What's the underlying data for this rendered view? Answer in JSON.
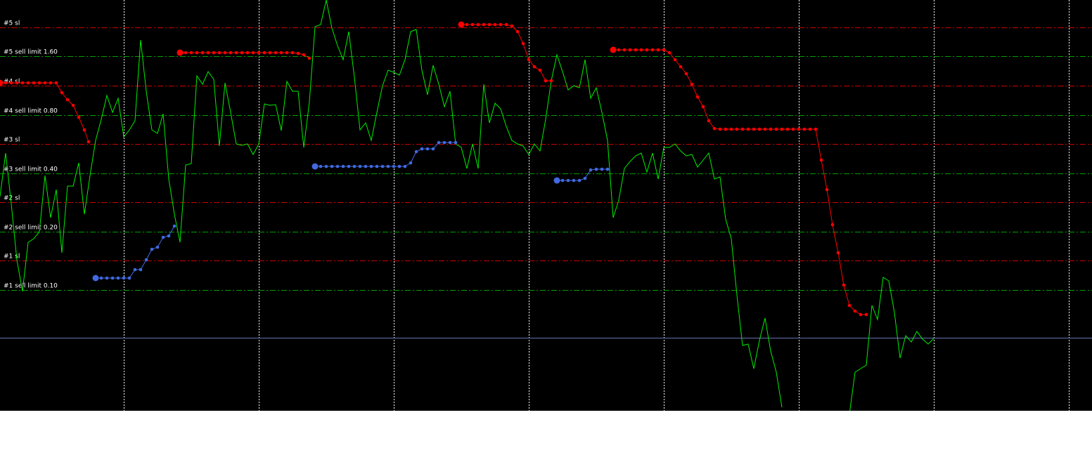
{
  "chart_data": {
    "type": "line",
    "xlim": [
      0,
      194.125
    ],
    "ylim": [
      0,
      585
    ],
    "xticks": [
      22,
      46,
      70,
      94,
      118,
      142,
      166,
      190
    ],
    "grid": true,
    "levels": [
      {
        "label": "#5 sl",
        "value": 546,
        "color": "#cc0000"
      },
      {
        "label": "#5 sell limit 1.60",
        "value": 505,
        "color": "#00a000"
      },
      {
        "label": "#4 sl",
        "value": 463,
        "color": "#cc0000"
      },
      {
        "label": "#4 sell limit 0.80",
        "value": 421,
        "color": "#00a000"
      },
      {
        "label": "#3 sl",
        "value": 380,
        "color": "#cc0000"
      },
      {
        "label": "#3 sell limit 0.40",
        "value": 338,
        "color": "#00a000"
      },
      {
        "label": "#2 sl",
        "value": 297,
        "color": "#cc0000"
      },
      {
        "label": "#2 sell limit 0.20",
        "value": 255,
        "color": "#00a000"
      },
      {
        "label": "#1 sl",
        "value": 214,
        "color": "#cc0000"
      },
      {
        "label": "#1 sell limit 0.10",
        "value": 172,
        "color": "#00a000"
      }
    ],
    "price_line": {
      "value": 104,
      "color": "#6672b0"
    },
    "series": [
      {
        "color": "#00ee00",
        "marker": "none",
        "x": [
          0,
          1,
          2,
          3,
          4,
          5,
          6,
          7,
          8,
          9,
          10,
          11,
          12,
          13,
          14,
          15,
          16,
          17,
          18,
          19,
          20,
          21,
          22,
          23,
          24,
          25,
          26,
          27,
          28,
          29,
          30,
          31,
          32,
          33,
          34,
          35,
          36,
          37,
          38,
          39,
          40,
          41,
          42,
          43,
          44,
          45,
          46,
          47,
          48,
          49,
          50,
          51,
          52,
          53,
          54,
          55,
          56,
          57,
          58,
          59,
          60,
          61,
          62,
          63,
          64,
          65,
          66,
          67,
          68,
          69,
          70,
          71,
          72,
          73,
          74,
          75,
          76,
          77,
          78,
          79,
          80,
          81,
          82,
          83,
          84,
          85,
          86,
          87,
          88,
          89,
          90,
          91,
          92,
          93,
          94,
          95,
          96,
          97,
          98,
          99,
          100,
          101,
          102,
          103,
          104,
          105,
          106,
          107,
          108,
          109,
          110,
          111,
          112,
          113,
          114,
          115,
          116,
          117,
          118,
          119,
          120,
          121,
          122,
          123,
          124,
          125,
          126,
          127,
          128,
          129,
          130,
          131,
          132,
          133,
          134,
          135,
          136,
          137,
          138,
          139,
          140,
          141,
          142,
          143,
          144,
          145,
          146,
          147,
          148,
          149,
          150,
          151,
          152,
          153,
          154,
          155,
          156,
          157,
          158,
          159,
          160,
          161,
          162,
          163,
          164,
          165,
          166
        ],
        "values": [
          305,
          367,
          295,
          215,
          170,
          240,
          245,
          255,
          335,
          275,
          315,
          225,
          320,
          320,
          353,
          280,
          335,
          385,
          415,
          449,
          425,
          445,
          390,
          400,
          413,
          528,
          455,
          400,
          395,
          423,
          330,
          280,
          240,
          350,
          352,
          477,
          465,
          483,
          472,
          377,
          467,
          425,
          380,
          378,
          380,
          365,
          380,
          437,
          435,
          436,
          399,
          469,
          455,
          455,
          375,
          440,
          547,
          550,
          585,
          545,
          520,
          500,
          540,
          475,
          400,
          410,
          385,
          425,
          463,
          485,
          482,
          478,
          500,
          540,
          543,
          485,
          450,
          492,
          465,
          433,
          455,
          380,
          375,
          345,
          380,
          345,
          465,
          410,
          438,
          430,
          405,
          385,
          380,
          377,
          365,
          380,
          370,
          415,
          470,
          507,
          483,
          457,
          463,
          460,
          500,
          445,
          460,
          425,
          385,
          275,
          300,
          345,
          355,
          363,
          367,
          340,
          367,
          330,
          375,
          375,
          380,
          370,
          363,
          365,
          347,
          357,
          367,
          330,
          333,
          273,
          245,
          165,
          93,
          95,
          60,
          100,
          132,
          85,
          55,
          5,
          null,
          null,
          null,
          null,
          null,
          null,
          null,
          null,
          null,
          null,
          null,
          -5,
          55,
          60,
          65,
          150,
          130,
          190,
          185,
          140,
          75,
          107,
          98,
          113,
          102,
          95,
          103
        ]
      },
      {
        "color": "#ff0000",
        "marker": "dots",
        "x": [
          0,
          1,
          2,
          3,
          4,
          5,
          6,
          7,
          8,
          9,
          10,
          11,
          12,
          13,
          14,
          15,
          15.75
        ],
        "values": [
          467,
          467,
          467,
          467,
          467,
          467,
          467,
          467,
          467,
          467,
          467,
          453,
          443,
          435,
          418,
          400,
          383
        ]
      },
      {
        "color": "#ff0000",
        "marker": "dots",
        "x": [
          32,
          33,
          34,
          35,
          36,
          37,
          38,
          39,
          40,
          41,
          42,
          43,
          44,
          45,
          46,
          47,
          48,
          49,
          50,
          51,
          52,
          53,
          54,
          55
        ],
        "values": [
          510,
          510,
          510,
          510,
          510,
          510,
          510,
          510,
          510,
          510,
          510,
          510,
          510,
          510,
          510,
          510,
          510,
          510,
          510,
          510,
          510,
          509,
          507,
          502
        ]
      },
      {
        "color": "#ff0000",
        "marker": "dots",
        "x": [
          82,
          83,
          84,
          85,
          86,
          87,
          88,
          89,
          90,
          91,
          92,
          93,
          94,
          95,
          96,
          97,
          98
        ],
        "values": [
          550,
          550,
          550,
          550,
          550,
          550,
          550,
          550,
          550,
          548,
          540,
          523,
          500,
          490,
          485,
          470,
          470
        ]
      },
      {
        "color": "#ff0000",
        "marker": "dots",
        "x": [
          109,
          110,
          111,
          112,
          113,
          114,
          115,
          116,
          117,
          118,
          119,
          120,
          121,
          122,
          123,
          124,
          125,
          126,
          127,
          128,
          129,
          130,
          131,
          132,
          133,
          134,
          135,
          136,
          137,
          138,
          139,
          140,
          141,
          142,
          143,
          144,
          145,
          146,
          147,
          148,
          149,
          150,
          151,
          152,
          153,
          154
        ],
        "values": [
          514,
          514,
          514,
          514,
          514,
          514,
          514,
          514,
          514,
          514,
          510,
          500,
          490,
          480,
          465,
          447,
          433,
          413,
          402,
          401,
          401,
          401,
          401,
          401,
          401,
          401,
          401,
          401,
          401,
          401,
          401,
          401,
          401,
          401,
          401,
          401,
          401,
          357,
          315,
          265,
          225,
          179,
          150,
          142,
          137,
          137
        ]
      },
      {
        "color": "#4169e1",
        "marker": "dots",
        "x": [
          17,
          18,
          19,
          20,
          21,
          22,
          23,
          24,
          25,
          26,
          27,
          28,
          29,
          30,
          31
        ],
        "values": [
          189,
          189,
          189,
          189,
          189,
          189,
          189,
          201,
          201,
          215,
          230,
          233,
          247,
          249,
          263
        ]
      },
      {
        "color": "#4169e1",
        "marker": "dots",
        "x": [
          56,
          57,
          58,
          59,
          60,
          61,
          62,
          63,
          64,
          65,
          66,
          67,
          68,
          69,
          70,
          71,
          72,
          73,
          74,
          75,
          76,
          77,
          78,
          79,
          80,
          81
        ],
        "values": [
          348,
          348,
          348,
          348,
          348,
          348,
          348,
          348,
          348,
          348,
          348,
          348,
          348,
          348,
          348,
          348,
          348,
          353,
          369,
          373,
          373,
          373,
          382,
          382,
          382,
          382
        ]
      },
      {
        "color": "#4169e1",
        "marker": "dots",
        "x": [
          99,
          100,
          101,
          102,
          103,
          104,
          105,
          106,
          107,
          108
        ],
        "values": [
          328,
          328,
          328,
          328,
          328,
          331,
          343,
          344,
          344,
          344
        ]
      }
    ]
  }
}
